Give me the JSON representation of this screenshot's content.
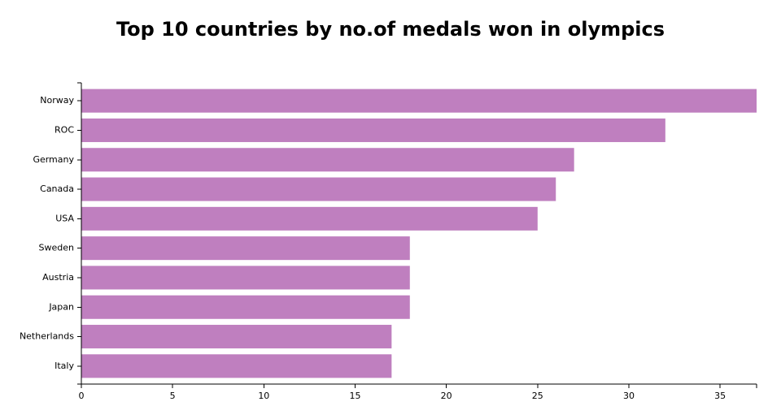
{
  "chart_data": {
    "type": "bar",
    "orientation": "horizontal",
    "title": "Top 10 countries by no.of medals won in olympics",
    "xlabel": "",
    "ylabel": "",
    "categories": [
      "Norway",
      "ROC",
      "Germany",
      "Canada",
      "USA",
      "Sweden",
      "Austria",
      "Japan",
      "Netherlands",
      "Italy"
    ],
    "values": [
      37,
      32,
      27,
      26,
      25,
      18,
      18,
      18,
      17,
      17
    ],
    "xlim": [
      0,
      37
    ],
    "x_ticks": [
      0,
      5,
      10,
      15,
      20,
      25,
      30,
      35
    ],
    "grid": false,
    "bar_color": "#bf7fbf"
  }
}
